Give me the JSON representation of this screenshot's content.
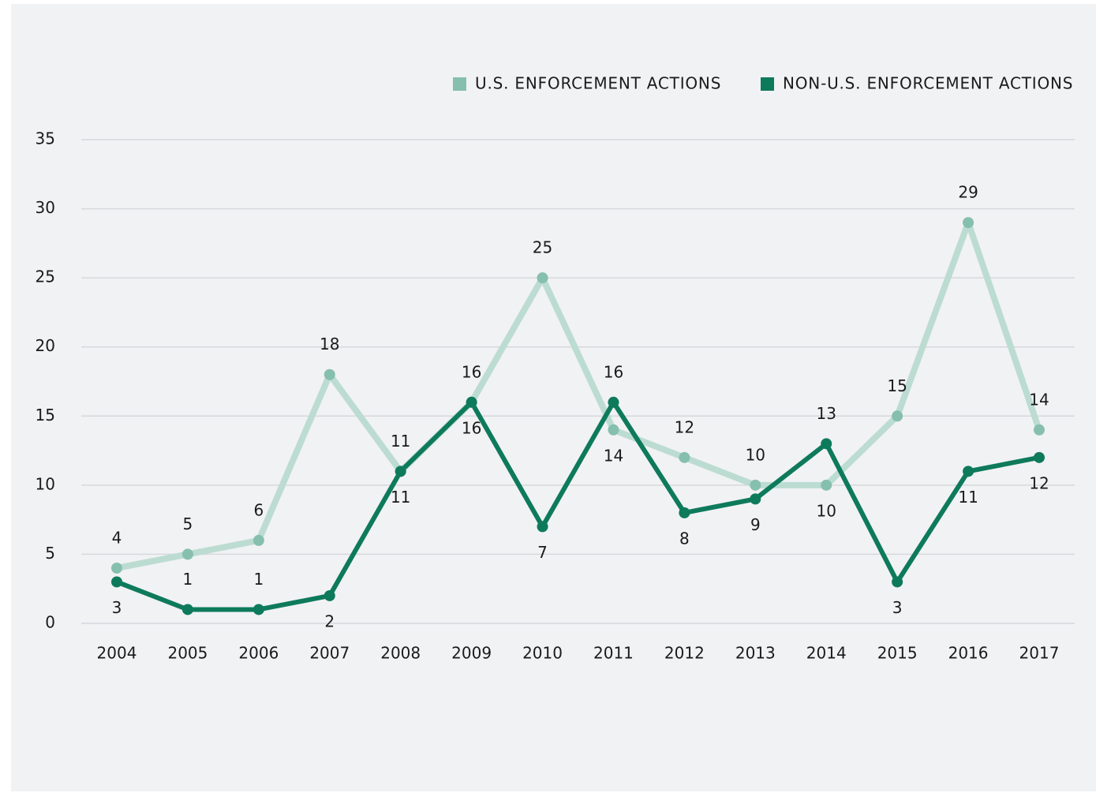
{
  "chart_data": {
    "type": "line",
    "x": [
      "2004",
      "2005",
      "2006",
      "2007",
      "2008",
      "2009",
      "2010",
      "2011",
      "2012",
      "2013",
      "2014",
      "2015",
      "2016",
      "2017"
    ],
    "series": [
      {
        "name": "U.S. ENFORCEMENT ACTIONS",
        "color": "#bcdcd1",
        "marker_color": "#86bfae",
        "label_color": "#2a8a6e",
        "values": [
          4,
          5,
          6,
          18,
          11,
          16,
          25,
          14,
          12,
          10,
          10,
          15,
          29,
          14
        ]
      },
      {
        "name": "NON-U.S. ENFORCEMENT ACTIONS",
        "color": "#0e7a5c",
        "marker_color": "#0e7a5c",
        "label_color": "#1a1a1a",
        "values": [
          3,
          1,
          1,
          2,
          11,
          16,
          7,
          16,
          8,
          9,
          13,
          3,
          11,
          12
        ]
      }
    ],
    "ylim": [
      0,
      35
    ],
    "yticks": [
      0,
      5,
      10,
      15,
      20,
      25,
      30,
      35
    ],
    "grid": true,
    "legend": "top-right"
  }
}
